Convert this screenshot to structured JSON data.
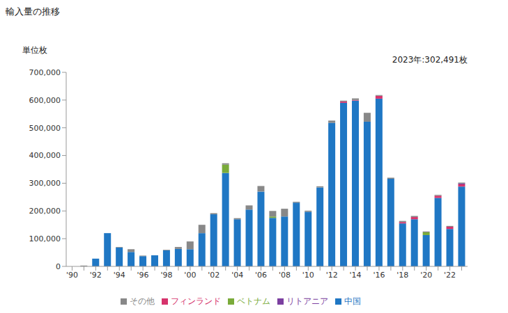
{
  "chart_data": {
    "type": "bar",
    "title": "輸入量の推移",
    "y_label": "単位枚",
    "annotation": "2023年:302,491枚",
    "stacked": true,
    "grid": false,
    "legend": "bottom",
    "categories": [
      "'90",
      null,
      "'92",
      null,
      "'94",
      null,
      "'96",
      null,
      "'98",
      null,
      "'00",
      null,
      "'02",
      null,
      "'04",
      null,
      "'06",
      null,
      "'08",
      null,
      "'10",
      null,
      "'12",
      null,
      "'14",
      null,
      "'16",
      null,
      "'18",
      null,
      "'20",
      null,
      "'22",
      null
    ],
    "series": [
      {
        "name": "中国",
        "color": "#1f77c4",
        "values": [
          0,
          0,
          28000,
          120000,
          68000,
          52000,
          37000,
          40000,
          58000,
          63000,
          62000,
          120000,
          188000,
          337000,
          170000,
          205000,
          270000,
          175000,
          180000,
          230000,
          197000,
          285000,
          518000,
          590000,
          598000,
          522000,
          605000,
          316000,
          155000,
          170000,
          113000,
          247000,
          135000,
          288000
        ]
      },
      {
        "name": "フィンランド",
        "color": "#d6336c",
        "values": [
          0,
          0,
          0,
          0,
          0,
          0,
          0,
          0,
          0,
          0,
          0,
          0,
          0,
          0,
          0,
          0,
          0,
          0,
          0,
          0,
          0,
          0,
          0,
          5000,
          2000,
          0,
          10000,
          0,
          5000,
          8000,
          0,
          8000,
          8000,
          8000
        ]
      },
      {
        "name": "ベトナム",
        "color": "#7aab3a",
        "values": [
          0,
          0,
          0,
          0,
          0,
          0,
          0,
          0,
          0,
          0,
          0,
          0,
          0,
          30000,
          0,
          0,
          0,
          5000,
          0,
          0,
          0,
          0,
          0,
          0,
          0,
          0,
          0,
          0,
          0,
          0,
          10000,
          0,
          0,
          0
        ]
      },
      {
        "name": "リトアニア",
        "color": "#7b3fa0",
        "values": [
          0,
          0,
          0,
          0,
          0,
          0,
          0,
          0,
          0,
          0,
          0,
          0,
          0,
          0,
          0,
          0,
          0,
          0,
          0,
          0,
          0,
          0,
          0,
          0,
          0,
          0,
          0,
          0,
          0,
          0,
          0,
          0,
          0,
          3000
        ]
      },
      {
        "name": "その他",
        "color": "#888888",
        "values": [
          0,
          3000,
          0,
          0,
          2000,
          10000,
          2000,
          0,
          2000,
          7000,
          28000,
          30000,
          4000,
          5000,
          4000,
          15000,
          20000,
          20000,
          28000,
          3000,
          4000,
          4000,
          8000,
          3000,
          6000,
          32000,
          3000,
          4000,
          4000,
          4000,
          3000,
          3000,
          3000,
          3491
        ]
      }
    ],
    "ylim": [
      0,
      700000
    ],
    "yticks": [
      0,
      {
        "value": 100000,
        "label": "100,000"
      },
      {
        "value": 200000,
        "label": "200,000"
      },
      {
        "value": 300000,
        "label": "300,000"
      },
      {
        "value": 400000,
        "label": "400,000"
      },
      {
        "value": 500000,
        "label": "500,000"
      },
      {
        "value": 600000,
        "label": "600,000"
      },
      {
        "value": 700000,
        "label": "700,000"
      }
    ]
  }
}
